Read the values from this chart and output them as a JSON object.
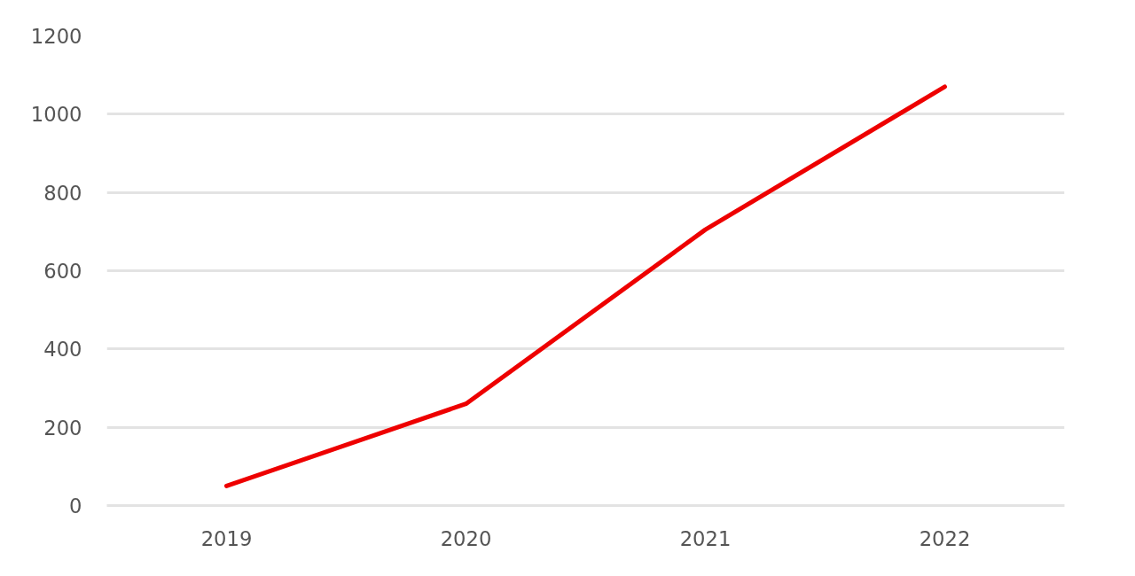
{
  "chart_data": {
    "type": "line",
    "categories": [
      "2019",
      "2020",
      "2021",
      "2022"
    ],
    "series": [
      {
        "color": "#ee0000",
        "values": [
          50,
          260,
          705,
          1070
        ]
      }
    ],
    "ylim": [
      0,
      1200
    ],
    "yticks": [
      0,
      200,
      400,
      600,
      800,
      1000,
      1200
    ],
    "grid": "y",
    "marker": "none",
    "line_style": "solid"
  }
}
